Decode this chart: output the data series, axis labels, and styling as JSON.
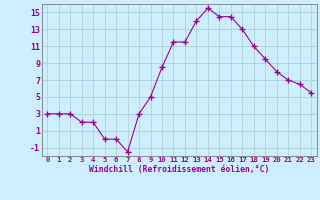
{
  "x": [
    0,
    1,
    2,
    3,
    4,
    5,
    6,
    7,
    8,
    9,
    10,
    11,
    12,
    13,
    14,
    15,
    16,
    17,
    18,
    19,
    20,
    21,
    22,
    23
  ],
  "y": [
    3,
    3,
    3,
    2,
    2,
    0,
    0,
    -1.5,
    3,
    5,
    8.5,
    11.5,
    11.5,
    14,
    15.5,
    14.5,
    14.5,
    13,
    11,
    9.5,
    8,
    7,
    6.5,
    5.5
  ],
  "line_color": "#990099",
  "marker": "+",
  "marker_size": 4,
  "bg_color": "#cceeff",
  "grid_color": "#aacccc",
  "xlabel": "Windchill (Refroidissement éolien,°C)",
  "xlabel_color": "#990099",
  "tick_color": "#990099",
  "ylim": [
    -2,
    16
  ],
  "yticks": [
    -1,
    1,
    3,
    5,
    7,
    9,
    11,
    13,
    15
  ],
  "xticks": [
    0,
    1,
    2,
    3,
    4,
    5,
    6,
    7,
    8,
    9,
    10,
    11,
    12,
    13,
    14,
    15,
    16,
    17,
    18,
    19,
    20,
    21,
    22,
    23
  ],
  "xtick_labels": [
    "0",
    "1",
    "2",
    "3",
    "4",
    "5",
    "6",
    "7",
    "8",
    "9",
    "10",
    "11",
    "12",
    "13",
    "14",
    "15",
    "16",
    "17",
    "18",
    "19",
    "20",
    "21",
    "22",
    "23"
  ]
}
